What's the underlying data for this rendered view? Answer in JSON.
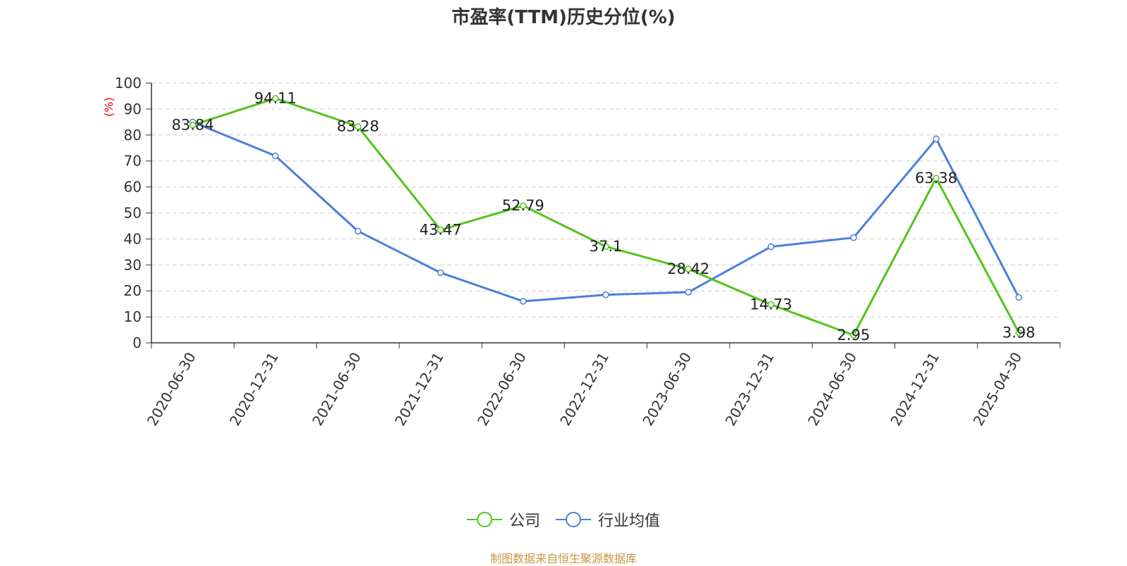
{
  "chart_data": {
    "type": "line",
    "title": "市盈率(TTM)历史分位(%)",
    "ylabel": "(%)",
    "ylim": [
      0,
      100
    ],
    "yticks": [
      0,
      10,
      20,
      30,
      40,
      50,
      60,
      70,
      80,
      90,
      100
    ],
    "categories": [
      "2020-06-30",
      "2020-12-31",
      "2021-06-30",
      "2021-12-31",
      "2022-06-30",
      "2022-12-31",
      "2023-06-30",
      "2023-12-31",
      "2024-06-30",
      "2024-12-31",
      "2025-04-30"
    ],
    "series": [
      {
        "name": "公司",
        "color": "#52c41a",
        "values": [
          83.84,
          94.11,
          83.28,
          43.47,
          52.79,
          37.1,
          28.42,
          14.73,
          2.95,
          63.38,
          3.98
        ],
        "labels": [
          "83.84",
          "94.11",
          "83.28",
          "43.47",
          "52.79",
          "37.1",
          "28.42",
          "14.73",
          "2.95",
          "63.38",
          "3.98"
        ]
      },
      {
        "name": "行业均值",
        "color": "#4a7fdc",
        "values": [
          85,
          72,
          43,
          27,
          16,
          18.5,
          19.5,
          37,
          40.5,
          78.5,
          17.5
        ]
      }
    ],
    "grid": true,
    "legend_position": "bottom-center"
  },
  "source_note": "制图数据来自恒生聚源数据库",
  "colors": {
    "ylabel": "#e60000",
    "source": "#c8963c",
    "grid": "#cccccc",
    "axis": "#333333"
  }
}
